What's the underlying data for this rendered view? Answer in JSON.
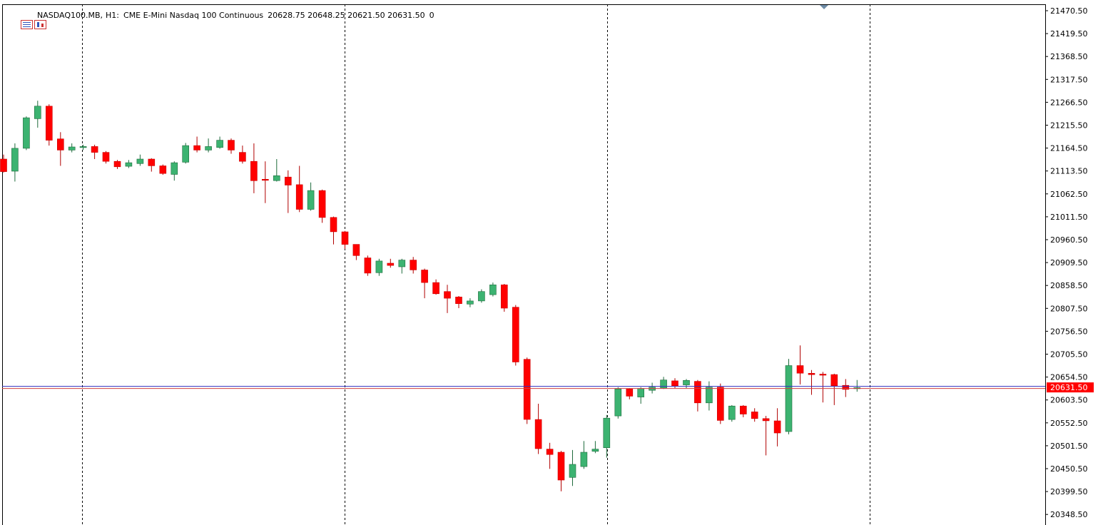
{
  "header": {
    "symbol": "NASDAQ100.MB,",
    "timeframe": "H1:",
    "description": "CME E-Mini Nasdaq 100 Continuous",
    "ohlc": "20628.75 20648.25 20621.50 20631.50",
    "volume": "0",
    "icons": [
      "menu-icon",
      "chart-icon"
    ]
  },
  "colors": {
    "bull": "#3cb371",
    "bear": "#ff0000",
    "bid_line": "#3030c0",
    "ask_line": "#d04040",
    "price_tag": "#ff0000",
    "grid": "#000000",
    "axis": "#000000"
  },
  "chart_data": {
    "type": "candlestick",
    "symbol": "NASDAQ100.MB",
    "timeframe": "H1",
    "ylim": [
      20320,
      21480
    ],
    "y_ticks": [
      "21470.50",
      "21419.50",
      "21368.50",
      "21317.50",
      "21266.50",
      "21215.50",
      "21164.50",
      "21113.50",
      "21062.50",
      "21011.50",
      "20960.50",
      "20909.50",
      "20858.50",
      "20807.50",
      "20756.50",
      "20705.50",
      "20654.50",
      "20603.50",
      "20552.50",
      "20501.50",
      "20450.50",
      "20399.50",
      "20348.50"
    ],
    "current_price": "20631.50",
    "grid": "vertical dotted separators",
    "candles": [
      {
        "o": 21140,
        "h": 21150,
        "l": 21110,
        "c": 21112
      },
      {
        "o": 21113,
        "h": 21175,
        "l": 21090,
        "c": 21164
      },
      {
        "o": 21164,
        "h": 21235,
        "l": 21160,
        "c": 21232
      },
      {
        "o": 21230,
        "h": 21270,
        "l": 21210,
        "c": 21258
      },
      {
        "o": 21258,
        "h": 21262,
        "l": 21170,
        "c": 21182
      },
      {
        "o": 21185,
        "h": 21200,
        "l": 21125,
        "c": 21160
      },
      {
        "o": 21160,
        "h": 21175,
        "l": 21155,
        "c": 21167
      },
      {
        "o": 21166,
        "h": 21172,
        "l": 21160,
        "c": 21168
      },
      {
        "o": 21168,
        "h": 21172,
        "l": 21140,
        "c": 21155
      },
      {
        "o": 21155,
        "h": 21158,
        "l": 21130,
        "c": 21135
      },
      {
        "o": 21135,
        "h": 21138,
        "l": 21118,
        "c": 21123
      },
      {
        "o": 21124,
        "h": 21138,
        "l": 21120,
        "c": 21132
      },
      {
        "o": 21130,
        "h": 21150,
        "l": 21125,
        "c": 21140
      },
      {
        "o": 21140,
        "h": 21142,
        "l": 21112,
        "c": 21125
      },
      {
        "o": 21125,
        "h": 21128,
        "l": 21105,
        "c": 21108
      },
      {
        "o": 21106,
        "h": 21135,
        "l": 21092,
        "c": 21132
      },
      {
        "o": 21133,
        "h": 21176,
        "l": 21130,
        "c": 21170
      },
      {
        "o": 21170,
        "h": 21190,
        "l": 21155,
        "c": 21160
      },
      {
        "o": 21160,
        "h": 21186,
        "l": 21155,
        "c": 21168
      },
      {
        "o": 21166,
        "h": 21190,
        "l": 21163,
        "c": 21182
      },
      {
        "o": 21182,
        "h": 21186,
        "l": 21152,
        "c": 21160
      },
      {
        "o": 21155,
        "h": 21170,
        "l": 21130,
        "c": 21135
      },
      {
        "o": 21135,
        "h": 21175,
        "l": 21064,
        "c": 21092
      },
      {
        "o": 21095,
        "h": 21135,
        "l": 21042,
        "c": 21093
      },
      {
        "o": 21092,
        "h": 21140,
        "l": 21090,
        "c": 21103
      },
      {
        "o": 21100,
        "h": 21115,
        "l": 21020,
        "c": 21082
      },
      {
        "o": 21083,
        "h": 21125,
        "l": 21022,
        "c": 21028
      },
      {
        "o": 21028,
        "h": 21088,
        "l": 21025,
        "c": 21070
      },
      {
        "o": 21070,
        "h": 21072,
        "l": 20998,
        "c": 21010
      },
      {
        "o": 21010,
        "h": 21012,
        "l": 20950,
        "c": 20978
      },
      {
        "o": 20978,
        "h": 20980,
        "l": 20940,
        "c": 20950
      },
      {
        "o": 20950,
        "h": 20950,
        "l": 20915,
        "c": 20925
      },
      {
        "o": 20920,
        "h": 20925,
        "l": 20880,
        "c": 20886
      },
      {
        "o": 20887,
        "h": 20918,
        "l": 20880,
        "c": 20913
      },
      {
        "o": 20908,
        "h": 20918,
        "l": 20898,
        "c": 20903
      },
      {
        "o": 20900,
        "h": 20918,
        "l": 20885,
        "c": 20915
      },
      {
        "o": 20915,
        "h": 20922,
        "l": 20885,
        "c": 20893
      },
      {
        "o": 20893,
        "h": 20896,
        "l": 20830,
        "c": 20865
      },
      {
        "o": 20865,
        "h": 20872,
        "l": 20838,
        "c": 20840
      },
      {
        "o": 20845,
        "h": 20860,
        "l": 20797,
        "c": 20830
      },
      {
        "o": 20833,
        "h": 20835,
        "l": 20808,
        "c": 20818
      },
      {
        "o": 20817,
        "h": 20830,
        "l": 20810,
        "c": 20824
      },
      {
        "o": 20824,
        "h": 20850,
        "l": 20820,
        "c": 20845
      },
      {
        "o": 20838,
        "h": 20865,
        "l": 20834,
        "c": 20860
      },
      {
        "o": 20860,
        "h": 20862,
        "l": 20800,
        "c": 20808
      },
      {
        "o": 20810,
        "h": 20815,
        "l": 20680,
        "c": 20688
      },
      {
        "o": 20694,
        "h": 20698,
        "l": 20550,
        "c": 20560
      },
      {
        "o": 20560,
        "h": 20595,
        "l": 20483,
        "c": 20495
      },
      {
        "o": 20494,
        "h": 20508,
        "l": 20450,
        "c": 20482
      },
      {
        "o": 20487,
        "h": 20490,
        "l": 20400,
        "c": 20425
      },
      {
        "o": 20431,
        "h": 20492,
        "l": 20412,
        "c": 20460
      },
      {
        "o": 20455,
        "h": 20512,
        "l": 20450,
        "c": 20487
      },
      {
        "o": 20489,
        "h": 20512,
        "l": 20485,
        "c": 20494
      },
      {
        "o": 20497,
        "h": 20570,
        "l": 20475,
        "c": 20563
      },
      {
        "o": 20568,
        "h": 20632,
        "l": 20562,
        "c": 20628
      },
      {
        "o": 20628,
        "h": 20630,
        "l": 20605,
        "c": 20612
      },
      {
        "o": 20610,
        "h": 20632,
        "l": 20595,
        "c": 20629
      },
      {
        "o": 20625,
        "h": 20642,
        "l": 20618,
        "c": 20632
      },
      {
        "o": 20630,
        "h": 20655,
        "l": 20628,
        "c": 20648
      },
      {
        "o": 20646,
        "h": 20652,
        "l": 20630,
        "c": 20635
      },
      {
        "o": 20637,
        "h": 20650,
        "l": 20630,
        "c": 20647
      },
      {
        "o": 20645,
        "h": 20648,
        "l": 20578,
        "c": 20597
      },
      {
        "o": 20597,
        "h": 20645,
        "l": 20580,
        "c": 20632
      },
      {
        "o": 20632,
        "h": 20640,
        "l": 20550,
        "c": 20558
      },
      {
        "o": 20560,
        "h": 20592,
        "l": 20555,
        "c": 20590
      },
      {
        "o": 20590,
        "h": 20592,
        "l": 20565,
        "c": 20572
      },
      {
        "o": 20577,
        "h": 20585,
        "l": 20555,
        "c": 20562
      },
      {
        "o": 20562,
        "h": 20568,
        "l": 20480,
        "c": 20557
      },
      {
        "o": 20557,
        "h": 20585,
        "l": 20500,
        "c": 20530
      },
      {
        "o": 20533,
        "h": 20695,
        "l": 20527,
        "c": 20680
      },
      {
        "o": 20680,
        "h": 20725,
        "l": 20638,
        "c": 20663
      },
      {
        "o": 20663,
        "h": 20670,
        "l": 20615,
        "c": 20660
      },
      {
        "o": 20661,
        "h": 20666,
        "l": 20598,
        "c": 20659
      },
      {
        "o": 20660,
        "h": 20662,
        "l": 20592,
        "c": 20635
      },
      {
        "o": 20636,
        "h": 20650,
        "l": 20610,
        "c": 20627
      },
      {
        "o": 20630,
        "h": 20648,
        "l": 20622,
        "c": 20631
      }
    ]
  }
}
